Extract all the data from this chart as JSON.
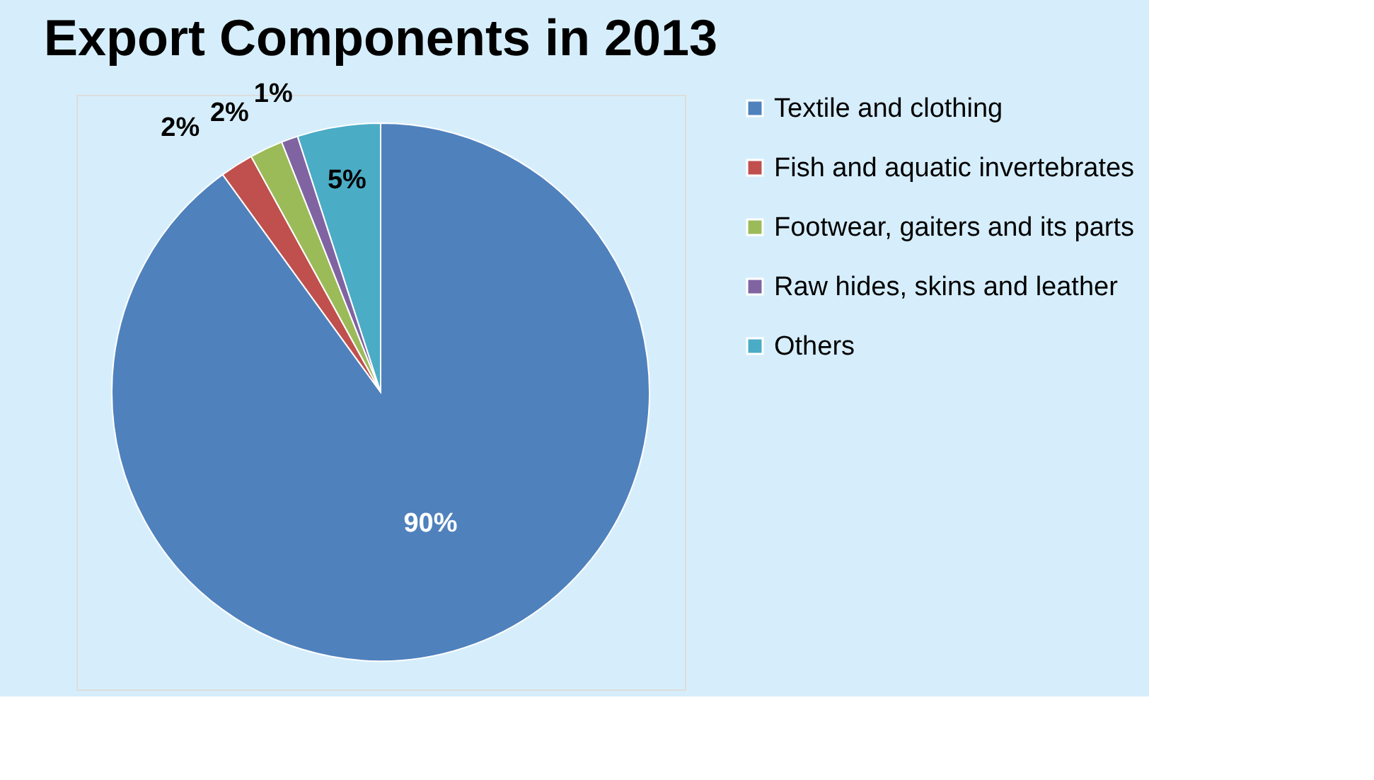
{
  "chart_data": {
    "type": "pie",
    "title": "Export Components in 2013",
    "categories": [
      "Textile and clothing",
      "Fish and aquatic invertebrates",
      "Footwear, gaiters and its parts",
      "Raw hides, skins and leather",
      "Others"
    ],
    "values": [
      90,
      2,
      2,
      1,
      5
    ],
    "value_labels": [
      "90%",
      "2%",
      "2%",
      "1%",
      "5%"
    ],
    "colors": [
      "#4f81bd",
      "#c0504d",
      "#9bbb59",
      "#8064a2",
      "#4bacc6"
    ],
    "legend": "right"
  }
}
